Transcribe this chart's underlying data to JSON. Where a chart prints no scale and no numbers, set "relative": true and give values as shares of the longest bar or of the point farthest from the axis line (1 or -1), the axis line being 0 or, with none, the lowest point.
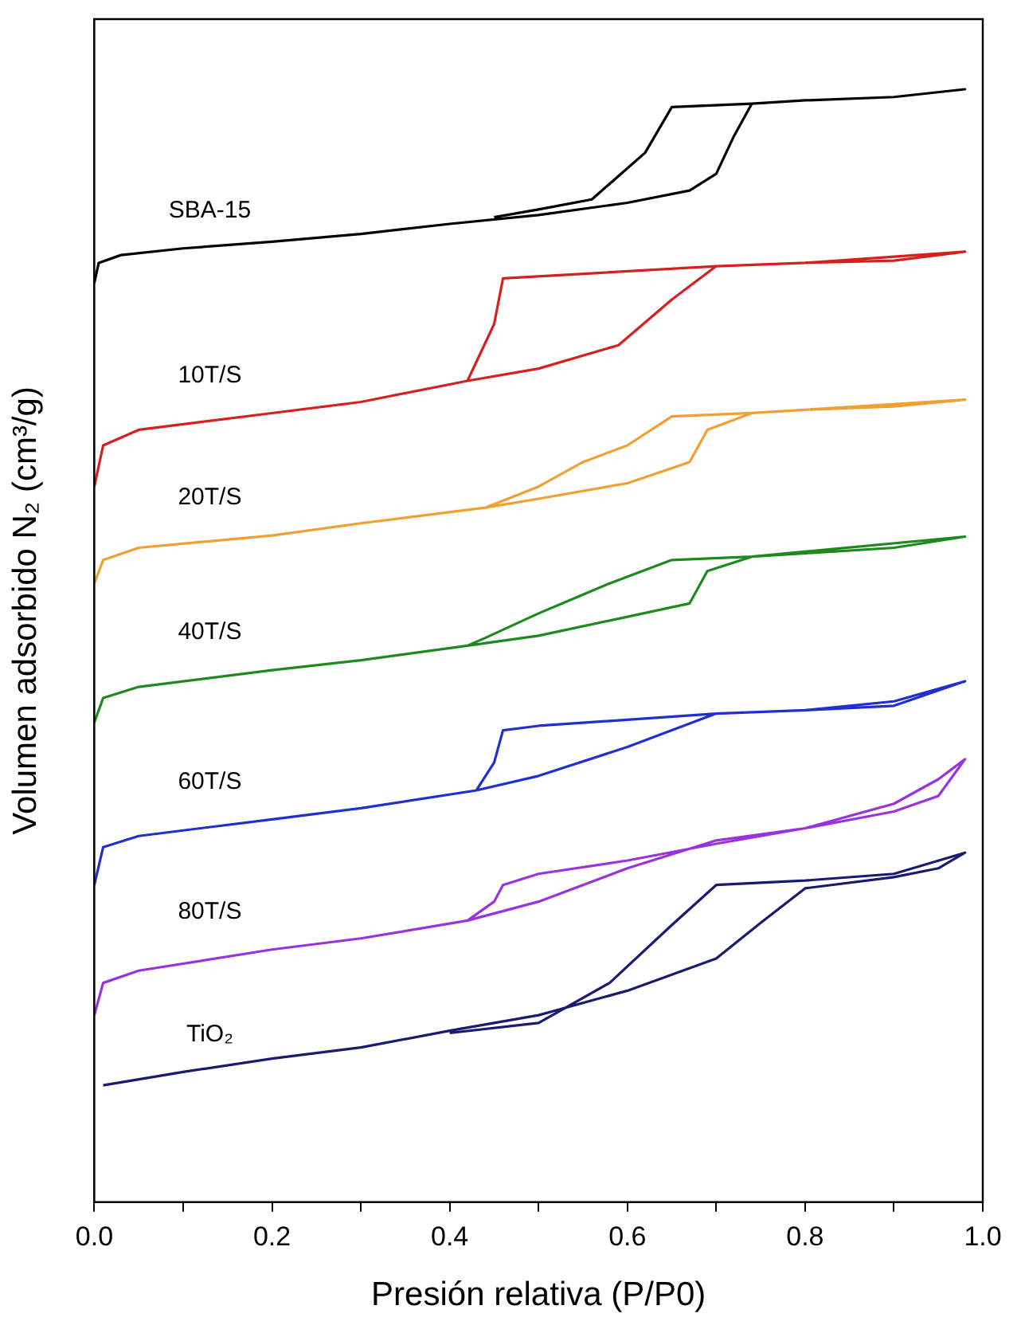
{
  "chart_data": {
    "type": "line",
    "relative": true,
    "xlabel": "Presión relativa (P/P0)",
    "ylabel": "Volumen adsorbido N₂ (cm³/g)",
    "xlim": [
      0,
      1
    ],
    "xticks": [
      {
        "value": 0,
        "label": "0.0"
      },
      {
        "value": 0.1,
        "label": null
      },
      {
        "value": 0.2,
        "label": "0.2"
      },
      {
        "value": 0.3,
        "label": null
      },
      {
        "value": 0.4,
        "label": "0.4"
      },
      {
        "value": 0.5,
        "label": null
      },
      {
        "value": 0.6,
        "label": "0.6"
      },
      {
        "value": 0.7,
        "label": null
      },
      {
        "value": 0.8,
        "label": "0.8"
      },
      {
        "value": 0.9,
        "label": null
      },
      {
        "value": 1,
        "label": "1.0"
      }
    ],
    "grid": false,
    "legend": false,
    "series": [
      {
        "name": "SBA-15",
        "color": "#000000",
        "x": [
          0,
          0.005,
          0.03,
          0.1,
          0.2,
          0.3,
          0.4,
          0.5,
          0.6,
          0.67,
          0.7,
          0.72,
          0.74,
          0.8,
          0.9,
          0.98,
          0.9,
          0.8,
          0.74,
          0.65,
          0.62,
          0.56,
          0.5,
          0.45
        ],
        "values": [
          0.826,
          0.844,
          0.851,
          0.857,
          0.863,
          0.87,
          0.879,
          0.887,
          0.898,
          0.909,
          0.924,
          0.958,
          0.987,
          0.99,
          0.993,
          1.0,
          0.993,
          0.99,
          0.987,
          0.984,
          0.943,
          0.901,
          0.892,
          0.885
        ]
      },
      {
        "name": "10T/S",
        "color": "#d62020",
        "x": [
          0,
          0.01,
          0.05,
          0.2,
          0.3,
          0.42,
          0.5,
          0.59,
          0.65,
          0.7,
          0.8,
          0.9,
          0.98,
          0.8,
          0.7,
          0.46,
          0.45,
          0.42
        ],
        "values": [
          0.643,
          0.68,
          0.694,
          0.709,
          0.719,
          0.738,
          0.749,
          0.77,
          0.811,
          0.841,
          0.844,
          0.846,
          0.854,
          0.844,
          0.841,
          0.83,
          0.789,
          0.738
        ]
      },
      {
        "name": "20T/S",
        "color": "#f0a030",
        "x": [
          0,
          0.01,
          0.05,
          0.2,
          0.3,
          0.44,
          0.5,
          0.6,
          0.67,
          0.69,
          0.74,
          0.8,
          0.9,
          0.98,
          0.74,
          0.65,
          0.6,
          0.55,
          0.5,
          0.44
        ],
        "values": [
          0.556,
          0.577,
          0.588,
          0.599,
          0.61,
          0.624,
          0.632,
          0.646,
          0.665,
          0.694,
          0.709,
          0.712,
          0.715,
          0.721,
          0.709,
          0.706,
          0.68,
          0.665,
          0.643,
          0.624
        ]
      },
      {
        "name": "40T/S",
        "color": "#1e8a1e",
        "x": [
          0,
          0.01,
          0.05,
          0.2,
          0.3,
          0.42,
          0.5,
          0.6,
          0.67,
          0.69,
          0.74,
          0.8,
          0.9,
          0.98,
          0.74,
          0.65,
          0.58,
          0.5,
          0.44,
          0.42
        ],
        "values": [
          0.431,
          0.453,
          0.463,
          0.478,
          0.487,
          0.5,
          0.509,
          0.526,
          0.538,
          0.567,
          0.58,
          0.583,
          0.588,
          0.598,
          0.58,
          0.577,
          0.556,
          0.529,
          0.507,
          0.5
        ]
      },
      {
        "name": "60T/S",
        "color": "#2030d0",
        "x": [
          0,
          0.01,
          0.05,
          0.2,
          0.3,
          0.43,
          0.5,
          0.6,
          0.7,
          0.8,
          0.9,
          0.98,
          0.9,
          0.8,
          0.7,
          0.5,
          0.46,
          0.45,
          0.43
        ],
        "values": [
          0.285,
          0.319,
          0.329,
          0.344,
          0.354,
          0.37,
          0.383,
          0.409,
          0.439,
          0.442,
          0.446,
          0.468,
          0.45,
          0.442,
          0.439,
          0.428,
          0.424,
          0.395,
          0.37
        ]
      },
      {
        "name": "80T/S",
        "color": "#9933e0",
        "x": [
          0,
          0.01,
          0.05,
          0.2,
          0.3,
          0.42,
          0.5,
          0.6,
          0.7,
          0.8,
          0.9,
          0.95,
          0.98,
          0.95,
          0.9,
          0.8,
          0.7,
          0.6,
          0.5,
          0.46,
          0.45,
          0.42
        ],
        "values": [
          0.168,
          0.197,
          0.208,
          0.227,
          0.237,
          0.253,
          0.27,
          0.3,
          0.325,
          0.336,
          0.351,
          0.365,
          0.398,
          0.38,
          0.358,
          0.336,
          0.322,
          0.307,
          0.295,
          0.285,
          0.27,
          0.253
        ]
      },
      {
        "name": "TiO₂",
        "color": "#1a1a70",
        "x": [
          0.01,
          0.1,
          0.2,
          0.3,
          0.4,
          0.5,
          0.6,
          0.7,
          0.75,
          0.8,
          0.9,
          0.95,
          0.98,
          0.9,
          0.8,
          0.7,
          0.65,
          0.58,
          0.5,
          0.4
        ],
        "values": [
          0.105,
          0.117,
          0.129,
          0.139,
          0.154,
          0.168,
          0.19,
          0.219,
          0.251,
          0.282,
          0.292,
          0.3,
          0.314,
          0.295,
          0.289,
          0.285,
          0.249,
          0.197,
          0.161,
          0.152
        ]
      }
    ]
  }
}
